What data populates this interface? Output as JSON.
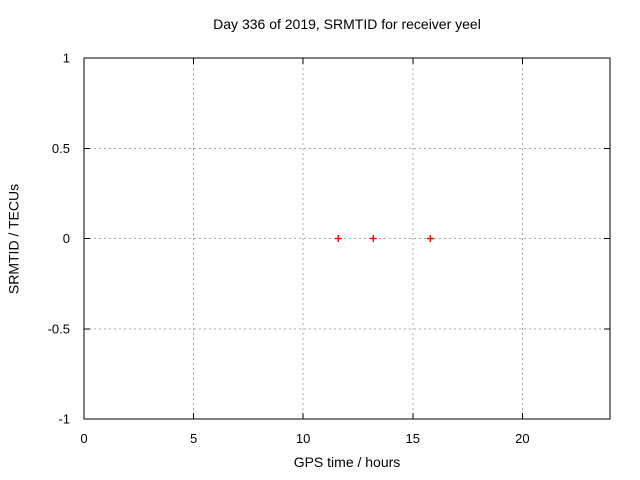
{
  "chart_data": {
    "type": "scatter",
    "title": "Day 336 of 2019, SRMTID for receiver yeel",
    "xlabel": "GPS time / hours",
    "ylabel": "SRMTID / TECUs",
    "xlim": [
      0,
      24
    ],
    "ylim": [
      -1,
      1
    ],
    "xticks": [
      0,
      5,
      10,
      15,
      20
    ],
    "yticks": [
      -1,
      -0.5,
      0,
      0.5,
      1
    ],
    "grid": true,
    "grid_style": "dashed",
    "legend": "none",
    "series": [
      {
        "name": "SRMTID",
        "marker": "plus",
        "color": "#ff0000",
        "points": [
          {
            "x": 11.6,
            "y": 0
          },
          {
            "x": 13.2,
            "y": 0
          },
          {
            "x": 15.8,
            "y": 0
          }
        ]
      }
    ]
  },
  "colors": {
    "background": "#ffffff",
    "axis": "#000000",
    "grid": "#a8a8a8",
    "text": "#000000",
    "marker": "#ff0000"
  }
}
